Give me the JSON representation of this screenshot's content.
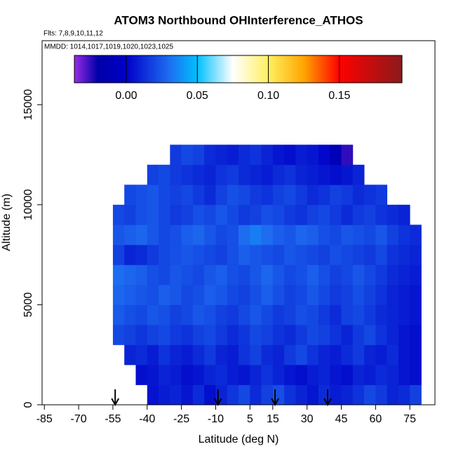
{
  "chart_data": {
    "type": "heatmap",
    "title": "ATOM3 Northbound OHInterference_ATHOS",
    "subtitle": "Flts: 7,8,9,10,11,12",
    "annotation": "MMDD: 1014,1017,1019,1020,1023,1025",
    "x_label": "Latitude (deg N)",
    "y_label": "Altitude (m)",
    "xlim": [
      -86,
      86
    ],
    "ylim": [
      0,
      18200
    ],
    "xticks": [
      -85,
      -70,
      -55,
      -40,
      -25,
      -10,
      5,
      15,
      30,
      45,
      60,
      75
    ],
    "yticks": [
      0,
      5000,
      10000,
      15000
    ],
    "xbins": [
      -55,
      -50,
      -45,
      -40,
      -35,
      -30,
      -25,
      -20,
      -15,
      -10,
      -5,
      0,
      5,
      10,
      15,
      20,
      25,
      30,
      35,
      40,
      45,
      50,
      55,
      60,
      65,
      70,
      75,
      80
    ],
    "ybins": [
      0,
      1000,
      2000,
      3000,
      4000,
      5000,
      6000,
      7000,
      8000,
      9000,
      10000,
      11000,
      12000,
      13000
    ],
    "values": [
      [
        null,
        null,
        null,
        0.005,
        0.008,
        0.01,
        0.006,
        0.012,
        0.004,
        0.01,
        0.015,
        0.02,
        0.012,
        0.018,
        0.022,
        0.014,
        0.01,
        0.006,
        0.012,
        0.008,
        0.01,
        0.014,
        0.02,
        0.016,
        0.01,
        0.012,
        0.018
      ],
      [
        null,
        null,
        0.004,
        0.006,
        0.01,
        0.008,
        0.004,
        0.006,
        0.01,
        0.012,
        0.008,
        0.006,
        0.01,
        0.014,
        0.01,
        0.006,
        0.004,
        0.008,
        0.01,
        0.006,
        0.004,
        0.01,
        0.008,
        0.012,
        0.01,
        0.006,
        0.004
      ],
      [
        null,
        0.01,
        0.012,
        0.008,
        0.014,
        0.01,
        0.008,
        0.012,
        0.016,
        0.01,
        0.008,
        0.014,
        0.018,
        0.012,
        0.01,
        0.016,
        0.02,
        0.014,
        0.01,
        0.008,
        0.012,
        0.016,
        0.01,
        0.008,
        0.012,
        0.006,
        0.004
      ],
      [
        0.02,
        0.018,
        0.015,
        0.018,
        0.02,
        0.016,
        0.014,
        0.018,
        0.02,
        0.016,
        0.012,
        0.015,
        0.02,
        0.018,
        0.014,
        0.012,
        0.016,
        0.02,
        0.018,
        0.014,
        0.01,
        0.016,
        0.02,
        0.014,
        0.01,
        0.006,
        0.004
      ],
      [
        0.025,
        0.022,
        0.02,
        0.024,
        0.022,
        0.018,
        0.02,
        0.024,
        0.022,
        0.018,
        0.016,
        0.02,
        0.024,
        0.02,
        0.016,
        0.018,
        0.022,
        0.02,
        0.016,
        0.012,
        0.018,
        0.02,
        0.016,
        0.012,
        0.01,
        0.008,
        0.006
      ],
      [
        0.028,
        0.026,
        0.024,
        0.022,
        0.026,
        0.024,
        0.02,
        0.022,
        0.026,
        0.024,
        0.02,
        0.018,
        0.022,
        0.026,
        0.022,
        0.018,
        0.02,
        0.024,
        0.02,
        0.016,
        0.018,
        0.022,
        0.018,
        0.014,
        0.01,
        0.008,
        0.006
      ],
      [
        0.03,
        0.028,
        0.026,
        0.022,
        0.02,
        0.024,
        0.022,
        0.02,
        0.024,
        0.026,
        0.022,
        0.02,
        0.024,
        0.028,
        0.024,
        0.02,
        0.022,
        0.026,
        0.022,
        0.018,
        0.02,
        0.024,
        0.02,
        0.016,
        0.012,
        0.01,
        0.008
      ],
      [
        0.018,
        0.01,
        0.012,
        0.016,
        0.02,
        0.022,
        0.024,
        0.022,
        0.02,
        0.018,
        0.022,
        0.026,
        0.024,
        0.022,
        0.02,
        0.024,
        0.022,
        0.02,
        0.018,
        0.022,
        0.02,
        0.018,
        0.016,
        0.02,
        0.014,
        0.012,
        0.01
      ],
      [
        0.024,
        0.026,
        0.028,
        0.024,
        0.02,
        0.022,
        0.026,
        0.028,
        0.024,
        0.02,
        0.022,
        0.03,
        0.034,
        0.03,
        0.026,
        0.024,
        0.028,
        0.026,
        0.022,
        0.02,
        0.024,
        0.022,
        0.02,
        0.024,
        0.018,
        0.014,
        0.012
      ],
      [
        0.02,
        0.018,
        0.022,
        0.024,
        0.02,
        0.016,
        0.018,
        0.022,
        0.02,
        0.024,
        0.02,
        0.016,
        0.018,
        0.022,
        0.02,
        0.016,
        0.014,
        0.018,
        0.02,
        0.016,
        0.012,
        0.016,
        0.018,
        0.014,
        0.012,
        0.01,
        null
      ],
      [
        null,
        0.02,
        0.022,
        0.024,
        0.02,
        0.018,
        0.02,
        0.016,
        0.012,
        0.018,
        0.022,
        0.02,
        0.016,
        0.014,
        0.018,
        0.02,
        0.016,
        0.012,
        0.014,
        0.018,
        0.016,
        0.012,
        0.014,
        0.016,
        null,
        null,
        null
      ],
      [
        null,
        null,
        null,
        0.018,
        0.02,
        0.016,
        0.014,
        0.012,
        0.01,
        0.014,
        0.016,
        0.012,
        0.01,
        0.008,
        0.012,
        0.014,
        0.01,
        0.008,
        0.006,
        0.004,
        0.006,
        0.01,
        null,
        null,
        null,
        null,
        null
      ],
      [
        null,
        null,
        null,
        null,
        null,
        0.016,
        0.02,
        0.018,
        0.012,
        0.01,
        0.008,
        0.012,
        0.014,
        0.01,
        0.006,
        0.004,
        0.008,
        0.006,
        0.002,
        -0.01,
        -0.025,
        null,
        null,
        null,
        null,
        null,
        null
      ]
    ],
    "colorbar": {
      "lim": [
        -0.0365,
        0.194
      ],
      "ticks": [
        {
          "value": 0,
          "label": "0.00"
        },
        {
          "value": 0.05,
          "label": "0.05"
        },
        {
          "value": 0.1,
          "label": "0.10"
        },
        {
          "value": 0.15,
          "label": "0.15"
        }
      ],
      "colormap": [
        [
          -0.0365,
          "#9a2be8"
        ],
        [
          -0.02,
          "#0000a8"
        ],
        [
          0,
          "#0000c8"
        ],
        [
          0.03,
          "#1e6cf0"
        ],
        [
          0.05,
          "#00c0ff"
        ],
        [
          0.075,
          "#ffffff"
        ],
        [
          0.1,
          "#fff060"
        ],
        [
          0.125,
          "#ffa500"
        ],
        [
          0.15,
          "#ff0000"
        ],
        [
          0.194,
          "#8b1a1a"
        ]
      ]
    },
    "arrows_x": [
      -54,
      -9,
      16,
      39
    ]
  }
}
